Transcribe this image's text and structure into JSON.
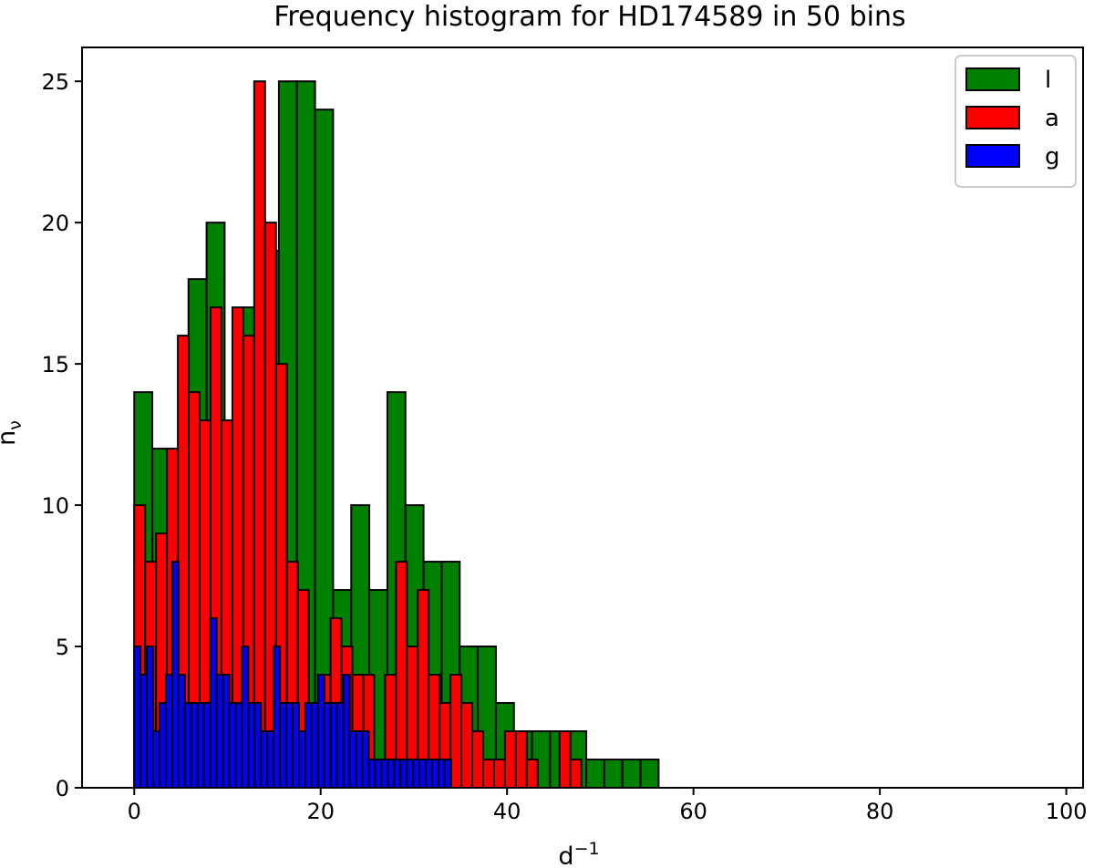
{
  "chart_data": {
    "type": "bar",
    "title": "Frequency histogram for HD174589 in 50 bins",
    "xlabel_base": "d",
    "xlabel_exp": "−1",
    "ylabel_base": "n",
    "ylabel_sub": "ν",
    "xlim": [
      -5.6,
      101.8
    ],
    "ylim": [
      0,
      26.2
    ],
    "xticks": [
      0,
      20,
      40,
      60,
      80,
      100
    ],
    "yticks": [
      0,
      5,
      10,
      15,
      20,
      25
    ],
    "legend_position": "top-right",
    "series": [
      {
        "name": "l",
        "color": "#008000",
        "bin_start": 0,
        "bin_width": 1.94,
        "values": [
          14,
          12,
          11,
          18,
          20,
          13,
          17,
          19,
          25,
          25,
          24,
          7,
          10,
          7,
          14,
          10,
          8,
          8,
          5,
          5,
          3,
          2,
          2,
          2,
          2,
          1,
          1,
          1,
          1,
          0,
          0,
          0,
          0,
          0,
          0,
          0,
          0,
          0,
          0,
          0,
          0,
          0,
          0,
          0,
          0,
          0,
          0,
          0,
          0,
          0
        ]
      },
      {
        "name": "a",
        "color": "#ff0000",
        "bin_start": 0,
        "bin_width": 1.17,
        "values": [
          10,
          8,
          9,
          12,
          16,
          14,
          13,
          17,
          13,
          17,
          16,
          25,
          20,
          15,
          8,
          7,
          2,
          4,
          6,
          5,
          4,
          4,
          1,
          4,
          8,
          5,
          7,
          4,
          3,
          4,
          3,
          2,
          1,
          1,
          2,
          2,
          1,
          0,
          0,
          2,
          1,
          0,
          0,
          0,
          0,
          0,
          0,
          0,
          0,
          0
        ]
      },
      {
        "name": "g",
        "color": "#0000ff",
        "bin_start": 0,
        "bin_width": 0.68,
        "values": [
          5,
          4,
          5,
          2,
          3,
          4,
          8,
          4,
          3,
          3,
          3,
          3,
          6,
          4,
          4,
          3,
          3,
          5,
          3,
          3,
          2,
          2,
          5,
          3,
          3,
          3,
          2,
          3,
          3,
          4,
          3,
          3,
          3,
          4,
          2,
          2,
          2,
          1,
          1,
          1,
          1,
          1,
          1,
          1,
          1,
          1,
          1,
          1,
          1,
          1
        ]
      }
    ]
  }
}
